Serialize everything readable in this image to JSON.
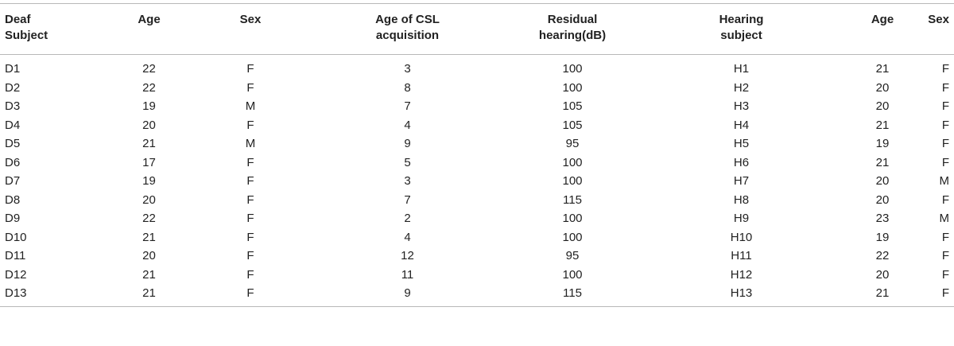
{
  "table": {
    "headers": [
      "Deaf\nSubject",
      "Age",
      "Sex",
      "Age of CSL\nacquisition",
      "Residual\nhearing(dB)",
      "Hearing\nsubject",
      "Age",
      "Sex"
    ],
    "rows": [
      [
        "D1",
        "22",
        "F",
        "3",
        "100",
        "H1",
        "21",
        "F"
      ],
      [
        "D2",
        "22",
        "F",
        "8",
        "100",
        "H2",
        "20",
        "F"
      ],
      [
        "D3",
        "19",
        "M",
        "7",
        "105",
        "H3",
        "20",
        "F"
      ],
      [
        "D4",
        "20",
        "F",
        "4",
        "105",
        "H4",
        "21",
        "F"
      ],
      [
        "D5",
        "21",
        "M",
        "9",
        "95",
        "H5",
        "19",
        "F"
      ],
      [
        "D6",
        "17",
        "F",
        "5",
        "100",
        "H6",
        "21",
        "F"
      ],
      [
        "D7",
        "19",
        "F",
        "3",
        "100",
        "H7",
        "20",
        "M"
      ],
      [
        "D8",
        "20",
        "F",
        "7",
        "115",
        "H8",
        "20",
        "F"
      ],
      [
        "D9",
        "22",
        "F",
        "2",
        "100",
        "H9",
        "23",
        "M"
      ],
      [
        "D10",
        "21",
        "F",
        "4",
        "100",
        "H10",
        "19",
        "F"
      ],
      [
        "D11",
        "20",
        "F",
        "12",
        "95",
        "H11",
        "22",
        "F"
      ],
      [
        "D12",
        "21",
        "F",
        "11",
        "100",
        "H12",
        "20",
        "F"
      ],
      [
        "D13",
        "21",
        "F",
        "9",
        "115",
        "H13",
        "21",
        "F"
      ]
    ]
  }
}
